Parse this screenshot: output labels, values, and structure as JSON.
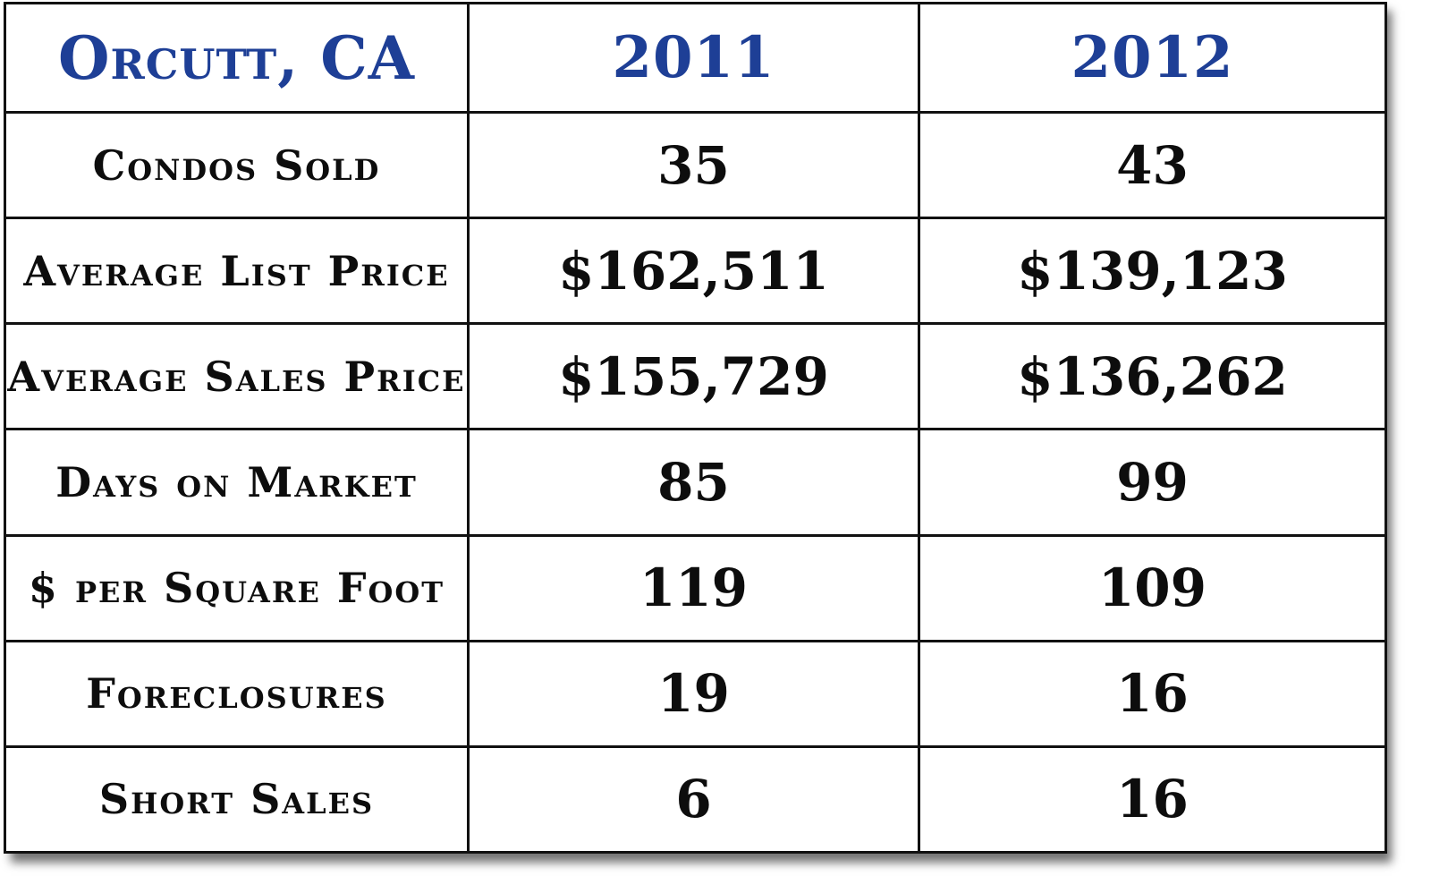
{
  "header": {
    "location": "Orcutt, CA",
    "year_1": "2011",
    "year_2": "2012"
  },
  "rows": [
    {
      "label": "Condos Sold",
      "year_1": "35",
      "year_2": "43"
    },
    {
      "label": "Average List Price",
      "year_1": "$162,511",
      "year_2": "$139,123"
    },
    {
      "label": "Average Sales Price",
      "year_1": "$155,729",
      "year_2": "$136,262"
    },
    {
      "label": "Days on Market",
      "year_1": "85",
      "year_2": "99"
    },
    {
      "label": "$ per Square Foot",
      "year_1": "119",
      "year_2": "109"
    },
    {
      "label": "Foreclosures",
      "year_1": "19",
      "year_2": "16"
    },
    {
      "label": "Short Sales",
      "year_1": "6",
      "year_2": "16"
    }
  ],
  "colors": {
    "header_text": "#1e3f96",
    "body_text": "#0d0d0d",
    "border": "#111111"
  }
}
